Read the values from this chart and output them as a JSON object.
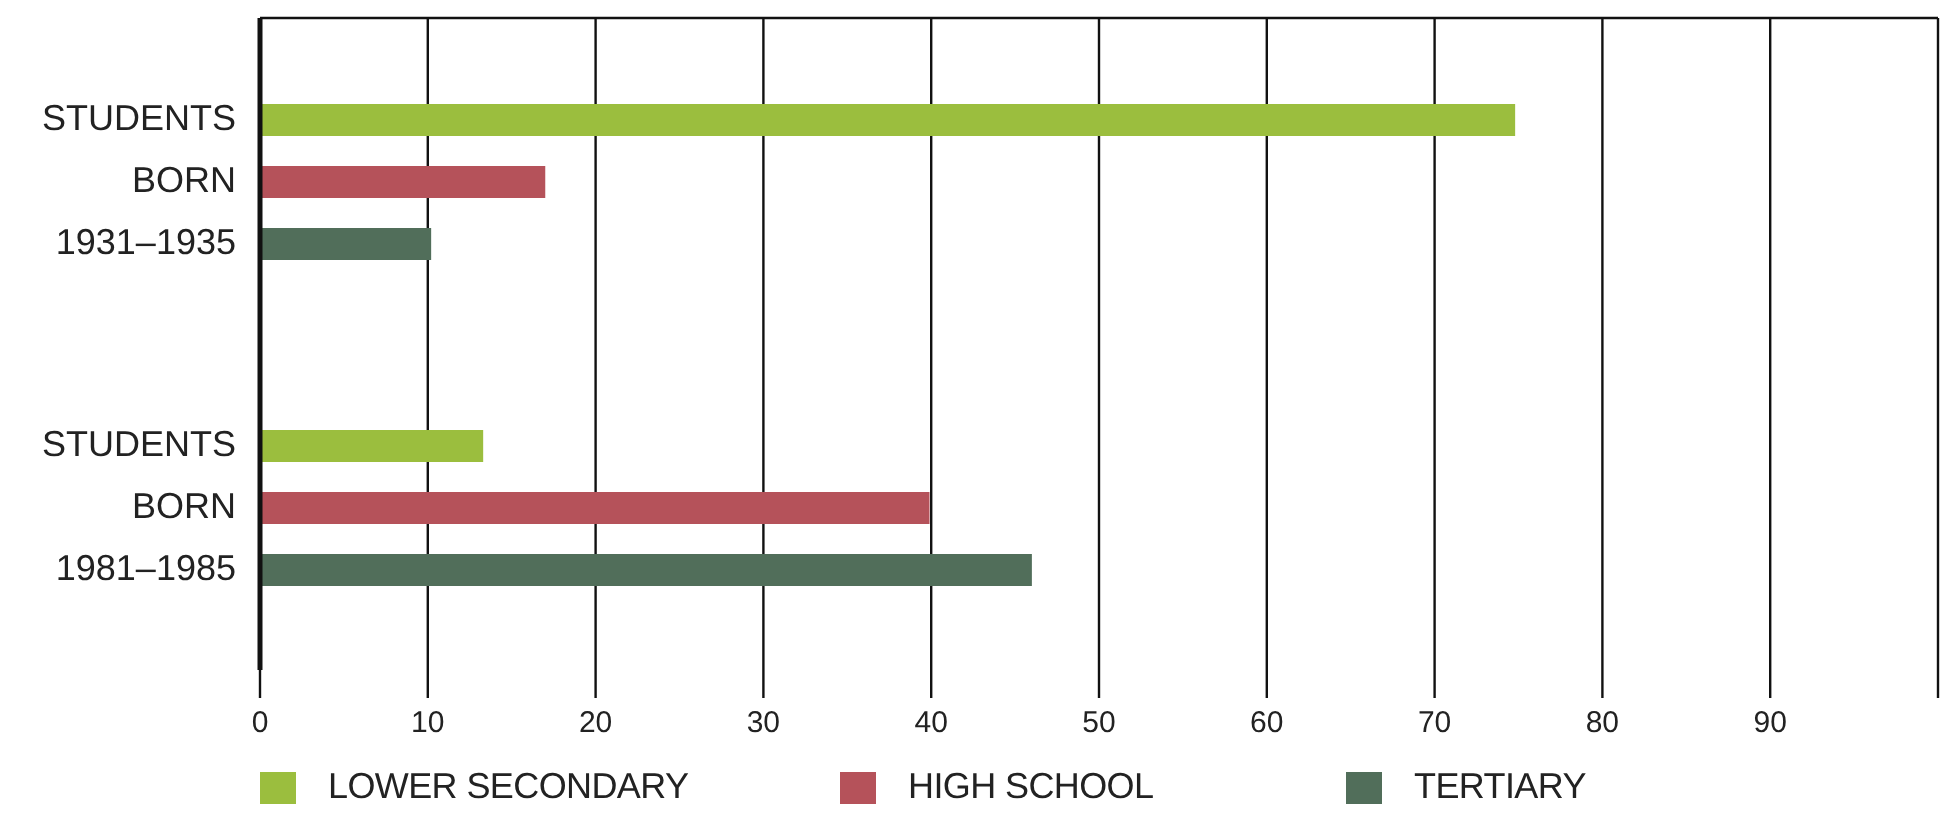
{
  "chart_data": {
    "type": "bar",
    "orientation": "horizontal",
    "categories": [
      "STUDENTS\nBORN\n1931–1935",
      "STUDENTS\nBORN\n1981–1985"
    ],
    "series": [
      {
        "name": "LOWER SECONDARY",
        "color": "#9bbe3e",
        "values": [
          74.8,
          13.3
        ]
      },
      {
        "name": "HIGH SCHOOL",
        "color": "#b5525a",
        "values": [
          17.0,
          39.9
        ]
      },
      {
        "name": "TERTIARY",
        "color": "#516e5a",
        "values": [
          10.2,
          46.0
        ]
      }
    ],
    "xlim": [
      0,
      100
    ],
    "xticks": [
      0,
      10,
      20,
      30,
      40,
      50,
      60,
      70,
      80,
      90,
      {
        "value": 100,
        "label": null
      }
    ],
    "grid": "x",
    "legend": "bottom"
  }
}
